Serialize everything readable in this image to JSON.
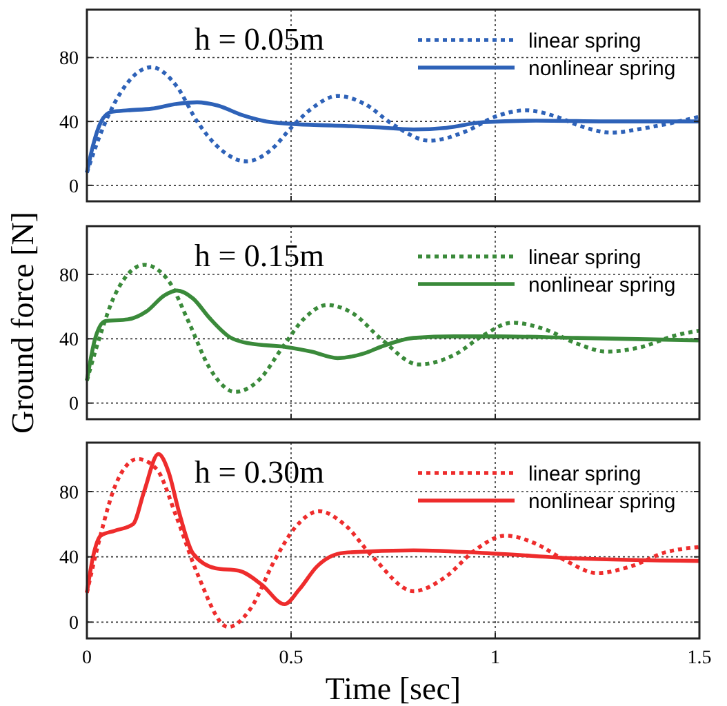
{
  "chart_data": [
    {
      "type": "line",
      "title": "h = 0.05m",
      "xlim": [
        0,
        1.5
      ],
      "xticks": [
        0,
        0.5,
        1,
        1.5
      ],
      "ylim": [
        -10,
        110
      ],
      "yticks": [
        0,
        40,
        80
      ],
      "grid": true,
      "legend": "top right",
      "tick_labels": "y",
      "series": [
        {
          "name": "linear spring",
          "color": "#2e62b8",
          "line_style": "dotted",
          "x": [
            0,
            0.03,
            0.08,
            0.158,
            0.22,
            0.27,
            0.33,
            0.39,
            0.45,
            0.5,
            0.55,
            0.614,
            0.68,
            0.75,
            0.839,
            0.93,
            1.0,
            1.075,
            1.15,
            1.21,
            1.284,
            1.37,
            1.5
          ],
          "values": [
            8,
            30,
            57,
            74,
            62,
            40,
            22,
            15,
            22,
            36,
            48,
            56,
            51,
            38,
            28,
            34,
            43,
            47,
            43,
            37,
            33,
            36,
            43
          ]
        },
        {
          "name": "nonlinear spring",
          "color": "#2e62b8",
          "line_style": "solid",
          "x": [
            0,
            0.015,
            0.035,
            0.06,
            0.1,
            0.158,
            0.22,
            0.27,
            0.32,
            0.38,
            0.44,
            0.5,
            0.6,
            0.7,
            0.8,
            0.88,
            0.97,
            1.1,
            1.3,
            1.5
          ],
          "values": [
            8,
            25,
            40,
            46,
            47,
            48,
            51,
            52,
            50,
            44,
            40,
            38.5,
            37.5,
            36.5,
            35,
            36,
            39.5,
            40.5,
            40,
            40
          ]
        }
      ]
    },
    {
      "type": "line",
      "title": "h = 0.15m",
      "ylabel": "Ground force [N]",
      "xlim": [
        0,
        1.5
      ],
      "xticks": [
        0,
        0.5,
        1,
        1.5
      ],
      "ylim": [
        -10,
        110
      ],
      "yticks": [
        0,
        40,
        80
      ],
      "grid": true,
      "legend": "top right",
      "tick_labels": "y",
      "series": [
        {
          "name": "linear spring",
          "color": "#3a8a3a",
          "line_style": "dotted",
          "x": [
            0,
            0.03,
            0.07,
            0.141,
            0.2,
            0.25,
            0.3,
            0.363,
            0.42,
            0.48,
            0.53,
            0.588,
            0.65,
            0.72,
            0.813,
            0.9,
            0.97,
            1.042,
            1.12,
            1.2,
            1.273,
            1.36,
            1.44,
            1.5
          ],
          "values": [
            14,
            40,
            68,
            86,
            76,
            50,
            22,
            7,
            14,
            35,
            52,
            61,
            56,
            40,
            24,
            30,
            42,
            50,
            46,
            37,
            32,
            35,
            42,
            45
          ]
        },
        {
          "name": "nonlinear spring",
          "color": "#3a8a3a",
          "line_style": "solid",
          "x": [
            0,
            0.02,
            0.045,
            0.1,
            0.146,
            0.19,
            0.22,
            0.26,
            0.3,
            0.35,
            0.4,
            0.484,
            0.55,
            0.614,
            0.68,
            0.72,
            0.8,
            0.9,
            1.0,
            1.2,
            1.5
          ],
          "values": [
            14,
            40,
            51,
            52,
            57,
            67,
            70,
            65,
            53,
            41,
            37,
            35,
            32,
            28,
            31,
            35,
            40.5,
            41.5,
            41.5,
            40.5,
            39
          ]
        }
      ]
    },
    {
      "type": "line",
      "title": "h = 0.30m",
      "xlabel": "Time [sec]",
      "xlim": [
        0,
        1.5
      ],
      "xticks": [
        0,
        0.5,
        1,
        1.5
      ],
      "ylim": [
        -10,
        110
      ],
      "yticks": [
        0,
        40,
        80
      ],
      "grid": true,
      "legend": "top right",
      "series": [
        {
          "name": "linear spring",
          "color": "#ee2c2c",
          "line_style": "dotted",
          "x": [
            0,
            0.03,
            0.07,
            0.124,
            0.17,
            0.22,
            0.27,
            0.346,
            0.4,
            0.46,
            0.51,
            0.569,
            0.63,
            0.7,
            0.8,
            0.88,
            0.95,
            1.025,
            1.1,
            1.17,
            1.25,
            1.33,
            1.42,
            1.5
          ],
          "values": [
            18,
            50,
            84,
            100,
            94,
            64,
            30,
            -3,
            8,
            38,
            58,
            68,
            60,
            40,
            19,
            28,
            44,
            53,
            48,
            38,
            30,
            34,
            43,
            46
          ]
        },
        {
          "name": "nonlinear spring",
          "color": "#ee2c2c",
          "line_style": "solid",
          "x": [
            0,
            0.015,
            0.034,
            0.068,
            0.113,
            0.14,
            0.175,
            0.2,
            0.225,
            0.26,
            0.315,
            0.372,
            0.428,
            0.484,
            0.52,
            0.563,
            0.63,
            0.8,
            1.0,
            1.2,
            1.5
          ],
          "values": [
            18,
            40,
            53,
            56,
            60,
            80,
            103,
            92,
            68,
            42,
            33,
            31.5,
            23,
            11,
            20,
            34,
            42.5,
            44,
            42,
            39,
            37.5
          ]
        }
      ]
    }
  ]
}
